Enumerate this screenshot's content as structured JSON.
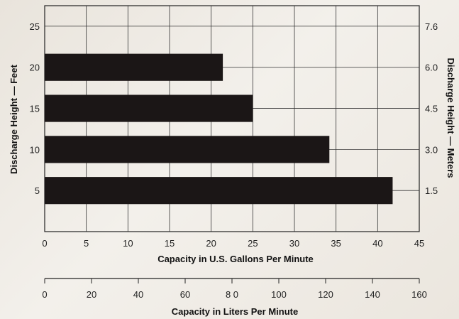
{
  "chart_data": {
    "type": "bar",
    "orientation": "horizontal",
    "categories": [
      "5",
      "10",
      "15",
      "20"
    ],
    "values": [
      41.8,
      34.2,
      25.0,
      21.4
    ],
    "bar_color": "#1b1616",
    "xlabel": "Capacity in U.S. Gallons Per Minute",
    "xlim": [
      0,
      45
    ],
    "x_ticks": [
      "0",
      "5",
      "10",
      "15",
      "20",
      "25",
      "30",
      "35",
      "40",
      "45"
    ],
    "ylabel_left": "Discharge Height — Feet",
    "y_ticks_left": [
      "5",
      "10",
      "15",
      "20",
      "25"
    ],
    "ylabel_right": "Discharge Height — Meters",
    "y_ticks_right": [
      "1.5",
      "3.0",
      "4.5",
      "6.0",
      "7.6"
    ],
    "secondary_xlabel": "Capacity in Liters Per Minute",
    "secondary_x_ticks": [
      "0",
      "20",
      "40",
      "60",
      "8 0",
      "100",
      "120",
      "140",
      "160"
    ],
    "secondary_xlim": [
      0,
      160
    ],
    "grid": true
  }
}
